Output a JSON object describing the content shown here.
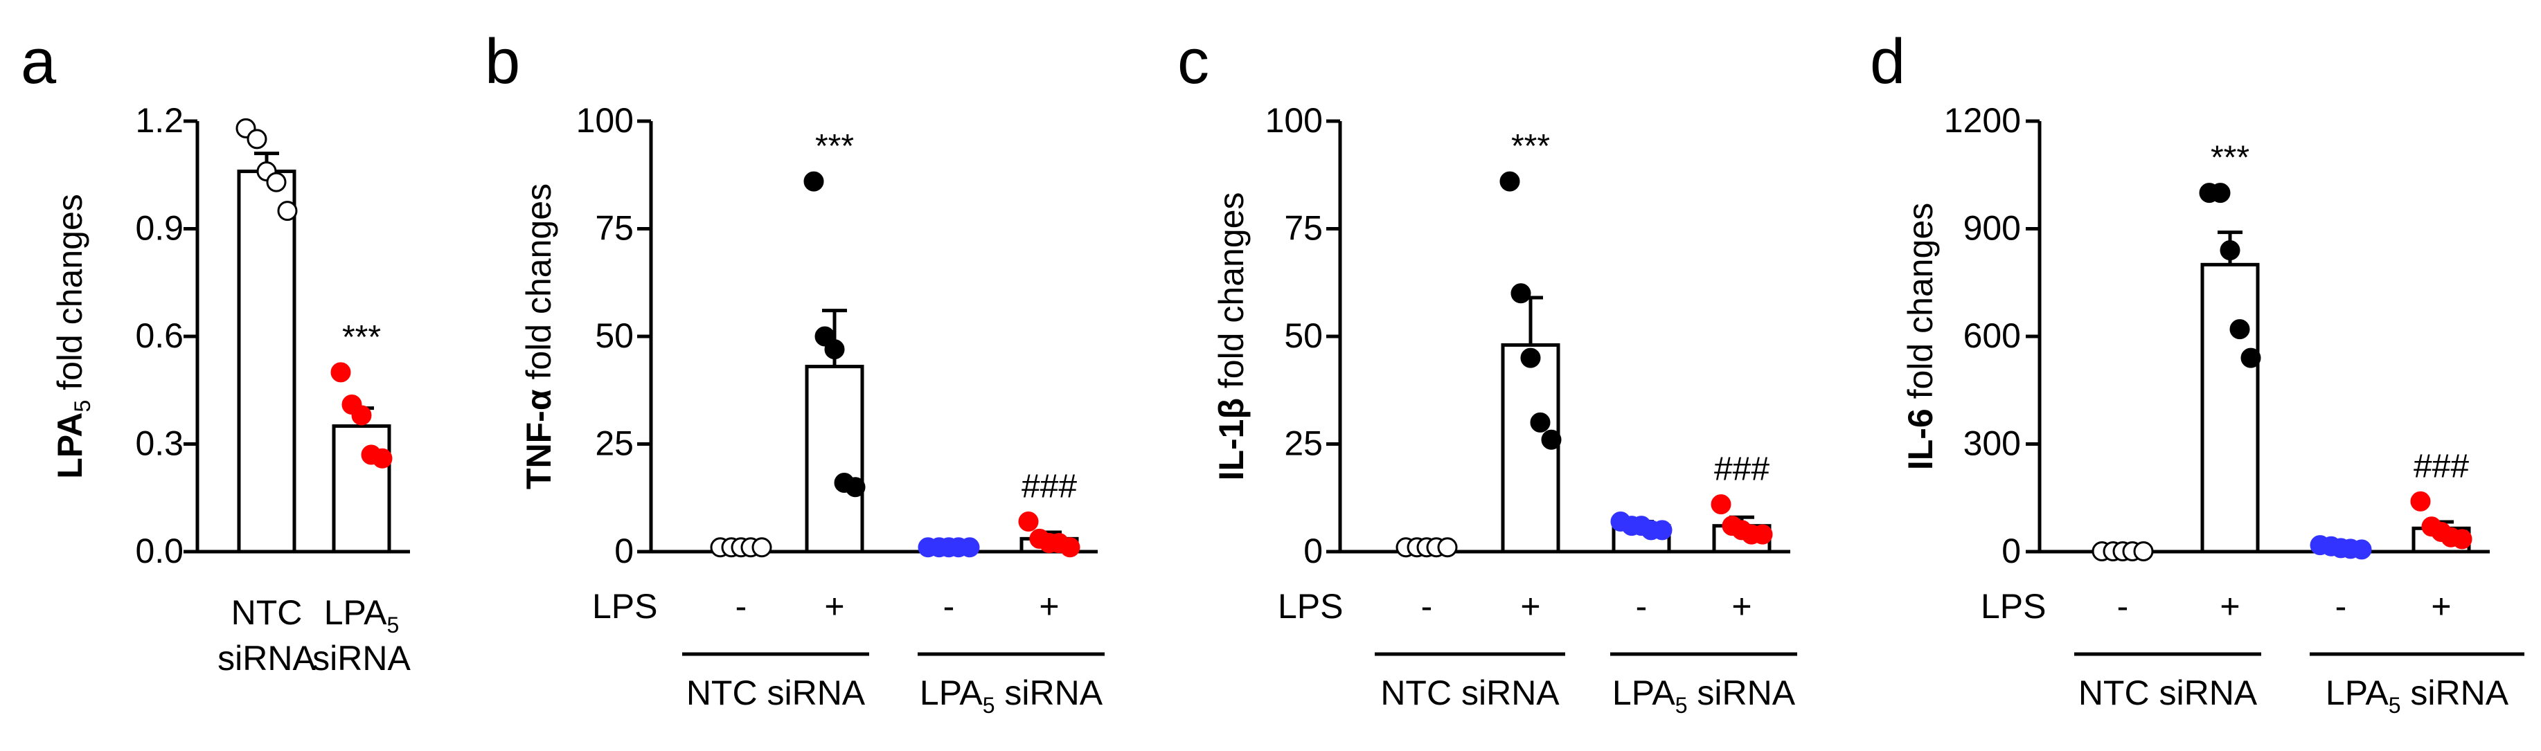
{
  "figure_title": "",
  "colors": {
    "axis": "#000000",
    "ntc": "#ffffff",
    "lpa5": "#ff0000",
    "blue": "#3333ff",
    "black": "#000000"
  },
  "chart_data": [
    {
      "type": "bar",
      "panel_label": "a",
      "ylabel_bold": "LPA",
      "ylabel_sub": "5",
      "ylabel_rest": " fold changes",
      "ylim": [
        0,
        1.2
      ],
      "yticks": [
        "0.0",
        "0.3",
        "0.6",
        "0.9",
        "1.2"
      ],
      "ytick_values": [
        0,
        0.3,
        0.6,
        0.9,
        1.2
      ],
      "categories": [
        {
          "line1": "NTC",
          "line1_sub": "",
          "line2": "siRNA"
        },
        {
          "line1": "LPA",
          "line1_sub": "5",
          "line2": "siRNA"
        }
      ],
      "bars": [
        {
          "mean": 1.06,
          "sem": 0.05,
          "dots": [
            1.18,
            1.15,
            1.06,
            1.03,
            0.95
          ],
          "dot_color": "white",
          "annotation": ""
        },
        {
          "mean": 0.35,
          "sem": 0.05,
          "dots": [
            0.5,
            0.41,
            0.38,
            0.27,
            0.26
          ],
          "dot_color": "red",
          "annotation": "***"
        }
      ]
    },
    {
      "type": "bar",
      "panel_label": "b",
      "ylabel_bold": "TNF-α",
      "ylabel_rest": " fold changes",
      "ylim": [
        0,
        100
      ],
      "yticks": [
        "0",
        "25",
        "50",
        "75",
        "100"
      ],
      "ytick_values": [
        0,
        25,
        50,
        75,
        100
      ],
      "lps_label": "LPS",
      "lps_signs": [
        "-",
        "+",
        "-",
        "+"
      ],
      "groups": [
        {
          "name": "NTC siRNA",
          "sub": "",
          "rest": ""
        },
        {
          "name": "LPA",
          "sub": "5",
          "rest": " siRNA"
        }
      ],
      "bars": [
        {
          "mean": 1,
          "sem": 0.3,
          "dots": [
            1,
            1,
            1,
            1,
            1
          ],
          "dot_color": "white",
          "annotation": ""
        },
        {
          "mean": 43,
          "sem": 13,
          "dots": [
            86,
            50,
            47,
            16,
            15
          ],
          "dot_color": "black",
          "annotation": "***"
        },
        {
          "mean": 1,
          "sem": 0.3,
          "dots": [
            1,
            1,
            1,
            1,
            1
          ],
          "dot_color": "blue",
          "annotation": ""
        },
        {
          "mean": 3,
          "sem": 1.5,
          "dots": [
            7,
            3,
            2,
            2,
            1
          ],
          "dot_color": "red",
          "annotation": "###"
        }
      ]
    },
    {
      "type": "bar",
      "panel_label": "c",
      "ylabel_bold": "IL-1β",
      "ylabel_rest": " fold changes",
      "ylim": [
        0,
        100
      ],
      "yticks": [
        "0",
        "25",
        "50",
        "75",
        "100"
      ],
      "ytick_values": [
        0,
        25,
        50,
        75,
        100
      ],
      "lps_label": "LPS",
      "lps_signs": [
        "-",
        "+",
        "-",
        "+"
      ],
      "groups": [
        {
          "name": "NTC siRNA",
          "sub": "",
          "rest": ""
        },
        {
          "name": "LPA",
          "sub": "5",
          "rest": " siRNA"
        }
      ],
      "bars": [
        {
          "mean": 1,
          "sem": 0.3,
          "dots": [
            1,
            1,
            1,
            1,
            1
          ],
          "dot_color": "white",
          "annotation": ""
        },
        {
          "mean": 48,
          "sem": 11,
          "dots": [
            86,
            60,
            45,
            30,
            26
          ],
          "dot_color": "black",
          "annotation": "***"
        },
        {
          "mean": 6,
          "sem": 1,
          "dots": [
            7,
            6,
            6,
            5,
            5
          ],
          "dot_color": "blue",
          "annotation": ""
        },
        {
          "mean": 6,
          "sem": 2,
          "dots": [
            11,
            6,
            5,
            4,
            4
          ],
          "dot_color": "red",
          "annotation": "###"
        }
      ]
    },
    {
      "type": "bar",
      "panel_label": "d",
      "ylabel_bold": "IL-6",
      "ylabel_rest": " fold changes",
      "ylim": [
        0,
        1200
      ],
      "yticks": [
        "0",
        "300",
        "600",
        "900",
        "1200"
      ],
      "ytick_values": [
        0,
        300,
        600,
        900,
        1200
      ],
      "lps_label": "LPS",
      "lps_signs": [
        "-",
        "+",
        "-",
        "+"
      ],
      "groups": [
        {
          "name": "NTC siRNA",
          "sub": "",
          "rest": ""
        },
        {
          "name": "LPA",
          "sub": "5",
          "rest": " siRNA"
        }
      ],
      "bars": [
        {
          "mean": 1,
          "sem": 0.5,
          "dots": [
            1,
            1,
            1,
            1,
            1
          ],
          "dot_color": "white",
          "annotation": ""
        },
        {
          "mean": 800,
          "sem": 90,
          "dots": [
            1000,
            1000,
            840,
            620,
            540
          ],
          "dot_color": "black",
          "annotation": "***"
        },
        {
          "mean": 12,
          "sem": 4,
          "dots": [
            18,
            15,
            10,
            8,
            6
          ],
          "dot_color": "blue",
          "annotation": ""
        },
        {
          "mean": 65,
          "sem": 18,
          "dots": [
            140,
            70,
            55,
            40,
            35
          ],
          "dot_color": "red",
          "annotation": "###"
        }
      ]
    }
  ]
}
